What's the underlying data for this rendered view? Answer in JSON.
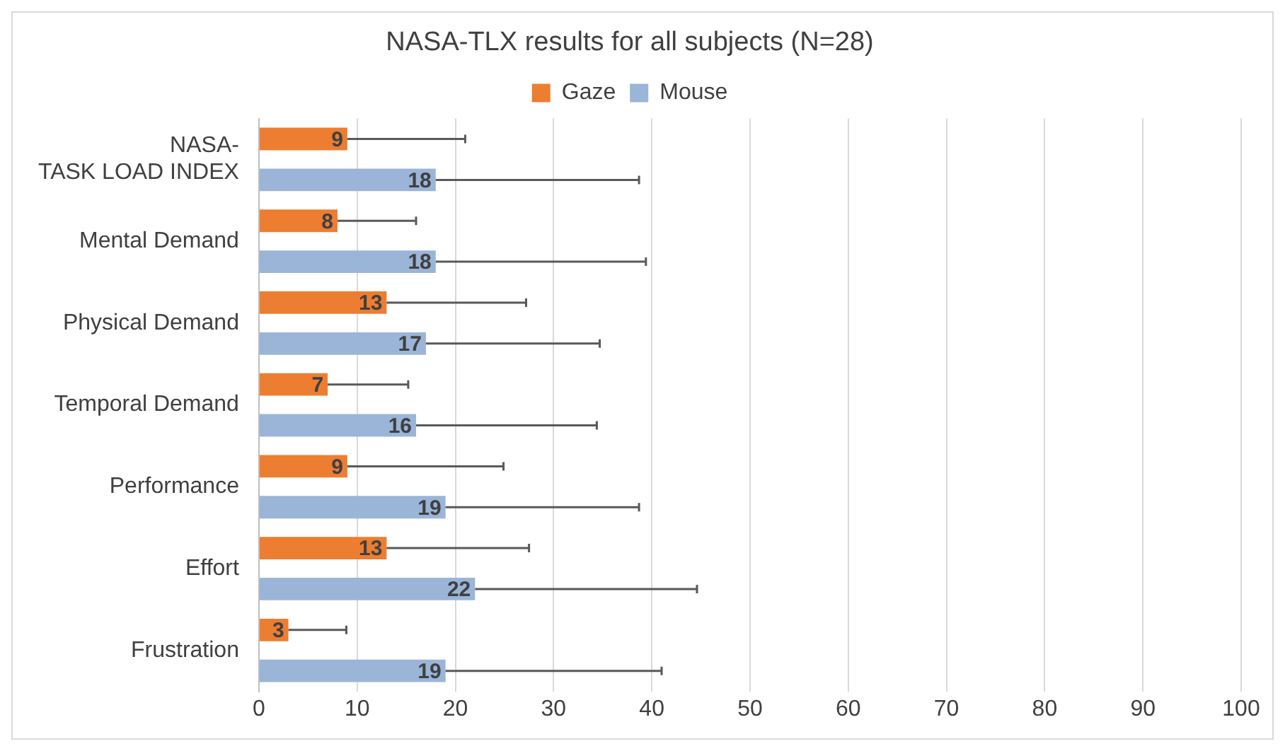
{
  "chart_data": {
    "type": "bar",
    "orientation": "horizontal",
    "title": "NASA-TLX results for all subjects (N=28)",
    "categories": [
      "NASA-\nTASK LOAD INDEX",
      "Mental Demand",
      "Physical Demand",
      "Temporal Demand",
      "Performance",
      "Effort",
      "Frustration"
    ],
    "series": [
      {
        "name": "Gaze",
        "color": "#ed7d31",
        "values": [
          9,
          8,
          13,
          7,
          9,
          13,
          3
        ],
        "errors": [
          [
            9,
            21.0
          ],
          [
            8,
            16.0
          ],
          [
            13,
            27.2
          ],
          [
            7,
            15.2
          ],
          [
            9,
            24.9
          ],
          [
            13,
            27.5
          ],
          [
            3,
            8.9
          ]
        ]
      },
      {
        "name": "Mouse",
        "color": "#9ab5d8",
        "values": [
          18,
          18,
          17,
          16,
          19,
          22,
          19
        ],
        "errors": [
          [
            18,
            38.7
          ],
          [
            18,
            39.4
          ],
          [
            17,
            34.7
          ],
          [
            16,
            34.4
          ],
          [
            19,
            38.7
          ],
          [
            22,
            44.6
          ],
          [
            19,
            41.0
          ]
        ]
      }
    ],
    "xlim": [
      0,
      100
    ],
    "xticks": [
      0,
      10,
      20,
      30,
      40,
      50,
      60,
      70,
      80,
      90,
      100
    ],
    "grid": "x",
    "legend": "top",
    "data_labels": true
  }
}
